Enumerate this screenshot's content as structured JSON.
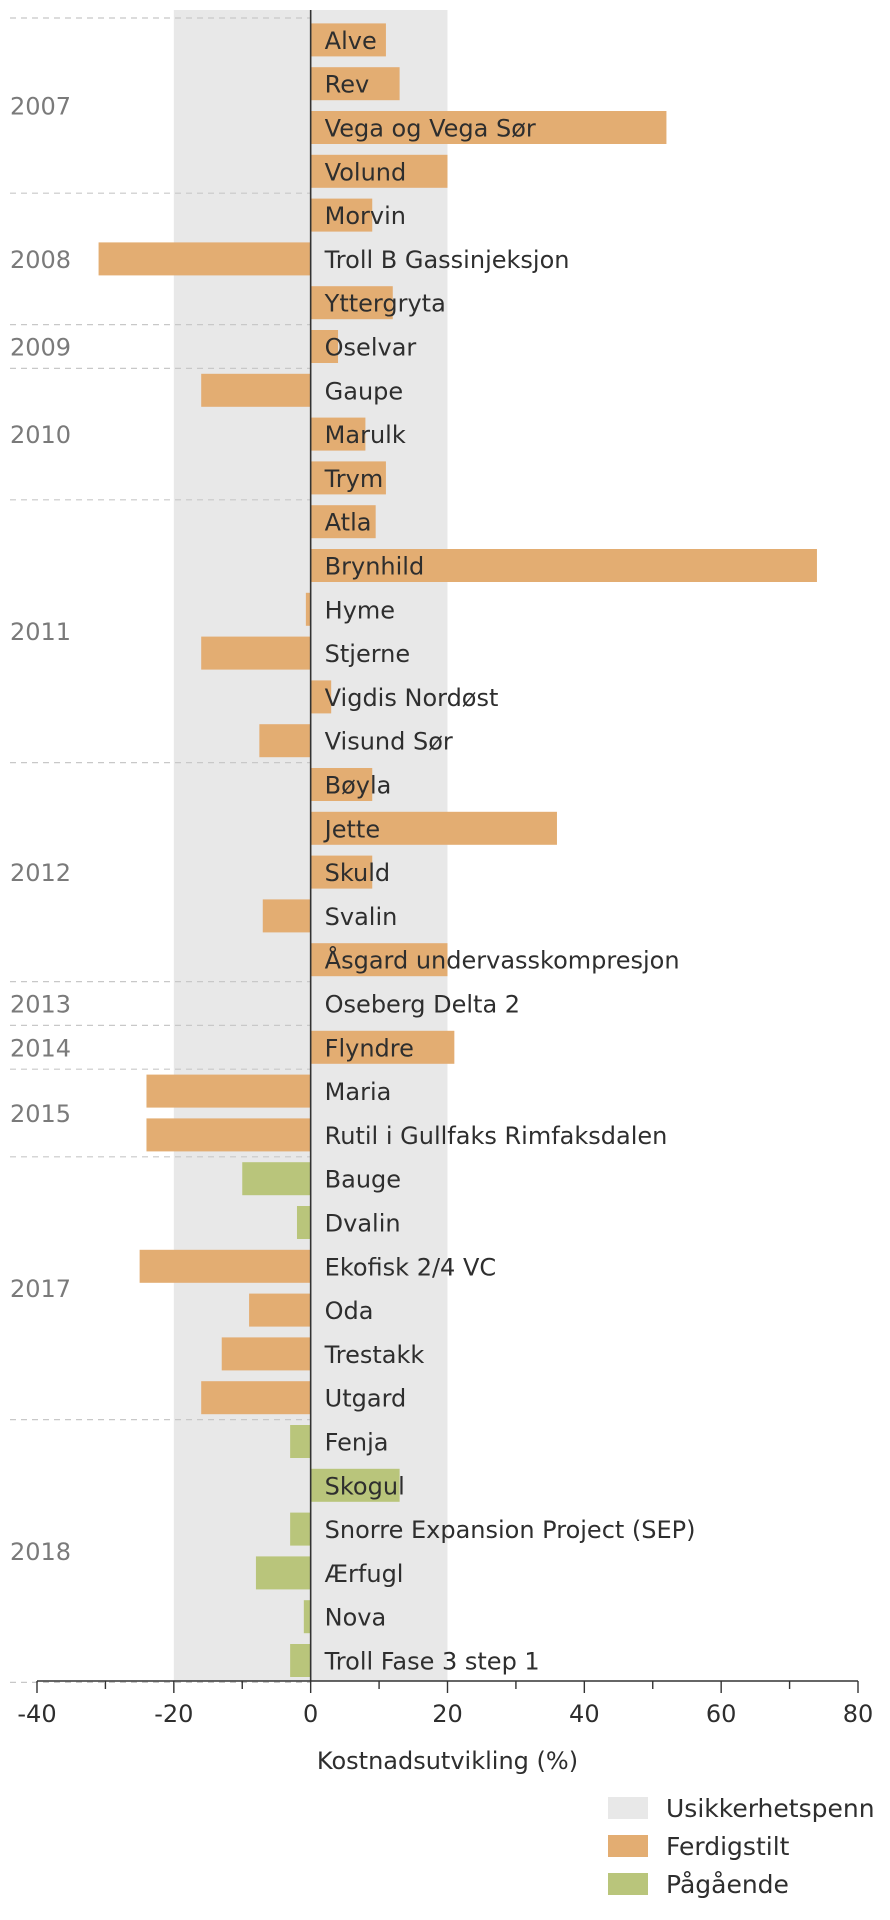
{
  "colors": {
    "completed": "#e3ad72",
    "ongoing": "#b9c57b",
    "uncertainty": "#e8e8e8",
    "axis": "#333333",
    "year_text": "#7a7a7a",
    "separator": "#c8c8c8"
  },
  "chart_data": {
    "type": "bar",
    "orientation": "horizontal",
    "xlabel": "Kostnadsutvikling (%)",
    "xlim": [
      -40,
      80
    ],
    "xticks": [
      -40,
      -20,
      0,
      20,
      40,
      60,
      80
    ],
    "xtick_labels": [
      "-40",
      "-20",
      "0",
      "20",
      "40",
      "60",
      "80"
    ],
    "uncertainty_band": [
      -20,
      20
    ],
    "legend": {
      "placement": "bottom-right",
      "entries": [
        {
          "key": "uncertainty",
          "label": "Usikkerhetspenn"
        },
        {
          "key": "completed",
          "label": "Ferdigstilt"
        },
        {
          "key": "ongoing",
          "label": "Pågående"
        }
      ]
    },
    "groups": [
      {
        "year": "2007",
        "projects": [
          {
            "name": "Alve",
            "value": 11,
            "status": "completed"
          },
          {
            "name": "Rev",
            "value": 13,
            "status": "completed"
          },
          {
            "name": "Vega og Vega Sør",
            "value": 52,
            "status": "completed"
          },
          {
            "name": "Volund",
            "value": 20,
            "status": "completed"
          }
        ]
      },
      {
        "year": "2008",
        "projects": [
          {
            "name": "Morvin",
            "value": 9,
            "status": "completed"
          },
          {
            "name": "Troll B Gassinjeksjon",
            "value": -31,
            "status": "completed"
          },
          {
            "name": "Yttergryta",
            "value": 12,
            "status": "completed"
          }
        ]
      },
      {
        "year": "2009",
        "projects": [
          {
            "name": "Oselvar",
            "value": 4,
            "status": "completed"
          }
        ]
      },
      {
        "year": "2010",
        "projects": [
          {
            "name": "Gaupe",
            "value": -16,
            "status": "completed"
          },
          {
            "name": "Marulk",
            "value": 8,
            "status": "completed"
          },
          {
            "name": "Trym",
            "value": 11,
            "status": "completed"
          }
        ]
      },
      {
        "year": "2011",
        "projects": [
          {
            "name": "Atla",
            "value": 9.5,
            "status": "completed"
          },
          {
            "name": "Brynhild",
            "value": 74,
            "status": "completed"
          },
          {
            "name": "Hyme",
            "value": -0.7,
            "status": "completed"
          },
          {
            "name": "Stjerne",
            "value": -16,
            "status": "completed"
          },
          {
            "name": "Vigdis Nordøst",
            "value": 3,
            "status": "completed"
          },
          {
            "name": "Visund Sør",
            "value": -7.5,
            "status": "completed"
          }
        ]
      },
      {
        "year": "2012",
        "projects": [
          {
            "name": "Bøyla",
            "value": 9,
            "status": "completed"
          },
          {
            "name": "Jette",
            "value": 36,
            "status": "completed"
          },
          {
            "name": "Skuld",
            "value": 9,
            "status": "completed"
          },
          {
            "name": "Svalin",
            "value": -7,
            "status": "completed"
          },
          {
            "name": "Åsgard undervasskompresjon",
            "value": 20,
            "status": "completed"
          }
        ]
      },
      {
        "year": "2013",
        "projects": [
          {
            "name": "Oseberg Delta 2",
            "value": 0,
            "status": "completed"
          }
        ]
      },
      {
        "year": "2014",
        "projects": [
          {
            "name": "Flyndre",
            "value": 21,
            "status": "completed"
          }
        ]
      },
      {
        "year": "2015",
        "projects": [
          {
            "name": "Maria",
            "value": -24,
            "status": "completed"
          },
          {
            "name": "Rutil i Gullfaks Rimfaksdalen",
            "value": -24,
            "status": "completed"
          }
        ]
      },
      {
        "year": "2017",
        "projects": [
          {
            "name": "Bauge",
            "value": -10,
            "status": "ongoing"
          },
          {
            "name": "Dvalin",
            "value": -2,
            "status": "ongoing"
          },
          {
            "name": "Ekofisk 2/4 VC",
            "value": -25,
            "status": "completed"
          },
          {
            "name": "Oda",
            "value": -9,
            "status": "completed"
          },
          {
            "name": "Trestakk",
            "value": -13,
            "status": "completed"
          },
          {
            "name": "Utgard",
            "value": -16,
            "status": "completed"
          }
        ]
      },
      {
        "year": "2018",
        "projects": [
          {
            "name": "Fenja",
            "value": -3,
            "status": "ongoing"
          },
          {
            "name": "Skogul",
            "value": 13,
            "status": "ongoing"
          },
          {
            "name": "Snorre Expansion Project (SEP)",
            "value": -3,
            "status": "ongoing"
          },
          {
            "name": "Ærfugl",
            "value": -8,
            "status": "ongoing"
          },
          {
            "name": "Nova",
            "value": -1,
            "status": "ongoing"
          },
          {
            "name": "Troll Fase 3 step 1",
            "value": -3,
            "status": "ongoing"
          }
        ]
      }
    ]
  }
}
